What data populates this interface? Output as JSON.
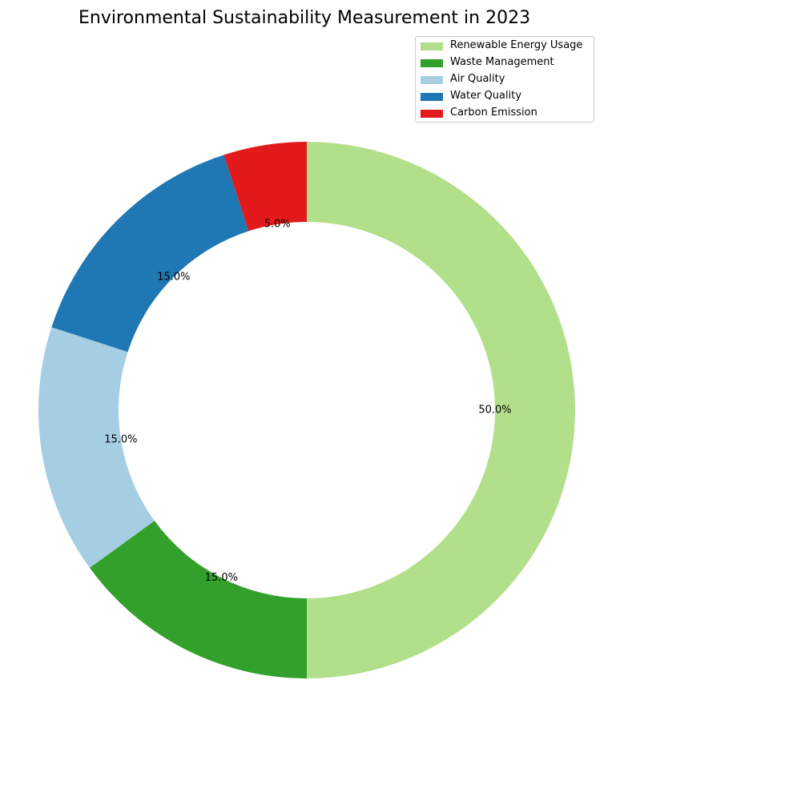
{
  "chart_data": {
    "type": "pie",
    "variant": "donut",
    "title": "Environmental Sustainability Measurement in 2023",
    "categories": [
      "Renewable Energy Usage",
      "Waste Management",
      "Air Quality",
      "Water Quality",
      "Carbon Emission"
    ],
    "values": [
      50,
      15,
      15,
      15,
      5
    ],
    "labels": [
      "50.0%",
      "15.0%",
      "15.0%",
      "15.0%",
      "5.0%"
    ],
    "colors": [
      "#b2df8a",
      "#33a02c",
      "#a6cee3",
      "#1f78b4",
      "#e31a1c"
    ],
    "start_angle": "top",
    "direction": "clockwise",
    "legend_position": "top-right"
  }
}
